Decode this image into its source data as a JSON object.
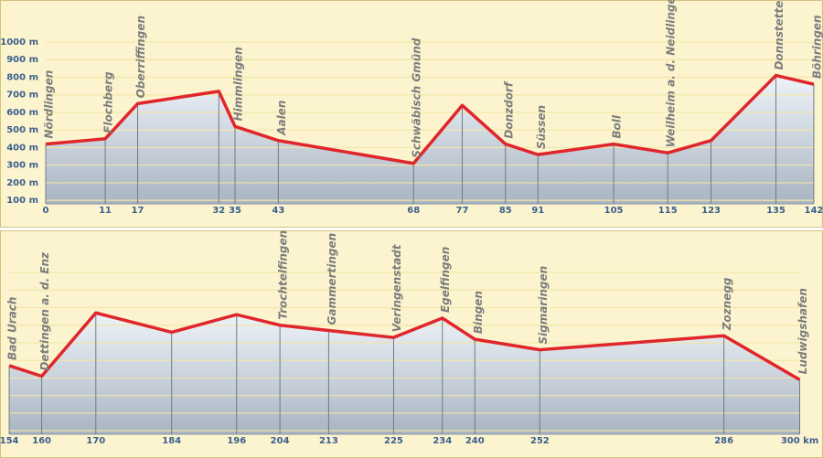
{
  "chart_data": [
    {
      "type": "area",
      "color": "#e0262a",
      "grid": true,
      "x": [
        0,
        11,
        17,
        32,
        35,
        43,
        68,
        77,
        85,
        91,
        105,
        115,
        123,
        135,
        142
      ],
      "values": [
        420,
        450,
        650,
        720,
        520,
        440,
        310,
        640,
        420,
        360,
        420,
        370,
        440,
        810,
        760
      ],
      "names": [
        "Nördlingen",
        "Flochberg",
        "Oberriffingen",
        null,
        "Himmlingen",
        "Aalen",
        "Schwäbisch Gmünd",
        null,
        "Donzdorf",
        "Süssen",
        "Boll",
        "Weilheim a. d. Neidlingen",
        null,
        "Donnstetten",
        "Böhringen"
      ],
      "xlim": [
        0,
        143.7
      ],
      "ylim": [
        80,
        1000
      ],
      "xticks": [
        0,
        11,
        17,
        32,
        35,
        43,
        68,
        77,
        85,
        91,
        105,
        115,
        123,
        135,
        142
      ],
      "yticks": [
        {
          "value": 100,
          "label": "100 m"
        },
        {
          "value": 200,
          "label": "200 m"
        },
        {
          "value": 300,
          "label": "300 m"
        },
        {
          "value": 400,
          "label": "400 m"
        },
        {
          "value": 500,
          "label": "500 m"
        },
        {
          "value": 600,
          "label": "600 m"
        },
        {
          "value": 700,
          "label": "700 m"
        },
        {
          "value": 800,
          "label": "800 m"
        },
        {
          "value": 900,
          "label": "900 m"
        },
        {
          "value": 1000,
          "label": "1000 m"
        }
      ]
    },
    {
      "type": "area",
      "color": "#e0262a",
      "grid": true,
      "x": [
        154,
        160,
        170,
        184,
        196,
        204,
        213,
        225,
        234,
        240,
        252,
        286,
        300
      ],
      "values": [
        470,
        410,
        770,
        660,
        760,
        700,
        670,
        630,
        740,
        620,
        560,
        640,
        390
      ],
      "names": [
        "Bad Urach",
        "Dettingen a. d. Enz",
        null,
        null,
        null,
        "Trochtelfingen",
        "Gammertingen",
        "Veringenstadt",
        "Egelfingen",
        "Bingen",
        "Sigmaringen",
        "Zoznegg",
        "Ludwigshafen"
      ],
      "xlim": [
        152.3,
        304.3
      ],
      "ylim": [
        80,
        1000
      ],
      "xticks": [
        154,
        160,
        170,
        184,
        196,
        204,
        213,
        225,
        234,
        240,
        252,
        286,
        {
          "value": 300,
          "label": "300 km"
        }
      ]
    }
  ]
}
